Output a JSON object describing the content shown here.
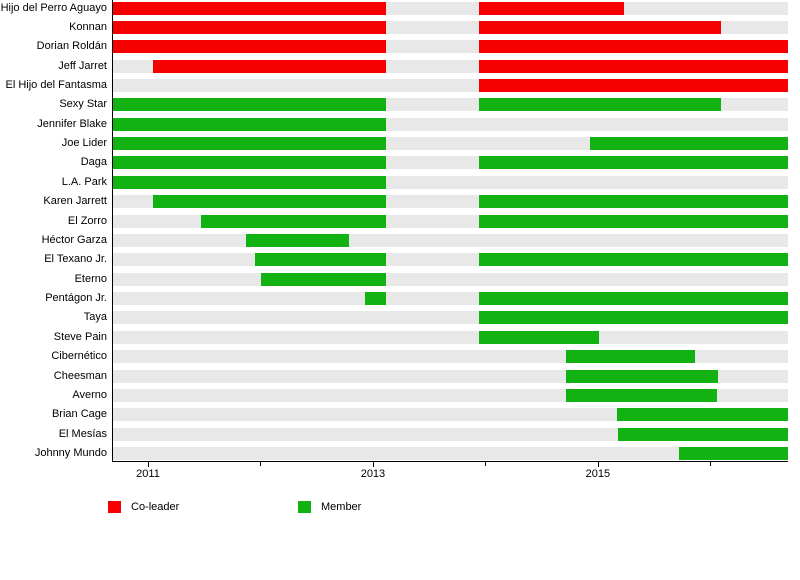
{
  "chart_data": {
    "type": "gantt",
    "title": "",
    "x_axis": {
      "min": 2010.68,
      "max": 2016.69,
      "labeled_ticks": [
        2011,
        2013,
        2015
      ],
      "minor_ticks": [
        2012,
        2014,
        2016
      ]
    },
    "colors": {
      "co-leader": "#f40000",
      "member": "#12b212",
      "track": "#e8e8e8"
    },
    "legend": [
      {
        "role": "co-leader",
        "label": "Co-leader",
        "color": "#f40000"
      },
      {
        "role": "member",
        "label": "Member",
        "color": "#12b212"
      }
    ],
    "rows": [
      {
        "name": "Hijo del Perro Aguayo",
        "role": "co-leader",
        "periods": [
          [
            2010.68,
            2013.11
          ],
          [
            2013.94,
            2015.23
          ]
        ]
      },
      {
        "name": "Konnan",
        "role": "co-leader",
        "periods": [
          [
            2010.68,
            2013.11
          ],
          [
            2013.94,
            2016.09
          ]
        ]
      },
      {
        "name": "Dorian Roldán",
        "role": "co-leader",
        "periods": [
          [
            2010.68,
            2013.11
          ],
          [
            2013.94,
            2016.69
          ]
        ]
      },
      {
        "name": "Jeff Jarret",
        "role": "co-leader",
        "periods": [
          [
            2011.04,
            2013.11
          ],
          [
            2013.94,
            2016.69
          ]
        ]
      },
      {
        "name": "El Hijo del Fantasma",
        "role": "co-leader",
        "periods": [
          [
            2013.94,
            2016.69
          ]
        ]
      },
      {
        "name": "Sexy Star",
        "role": "member",
        "periods": [
          [
            2010.68,
            2013.11
          ],
          [
            2013.94,
            2016.09
          ]
        ]
      },
      {
        "name": "Jennifer Blake",
        "role": "member",
        "periods": [
          [
            2010.68,
            2013.11
          ]
        ]
      },
      {
        "name": "Joe Lider",
        "role": "member",
        "periods": [
          [
            2010.68,
            2013.11
          ],
          [
            2014.93,
            2016.69
          ]
        ]
      },
      {
        "name": "Daga",
        "role": "member",
        "periods": [
          [
            2010.68,
            2013.11
          ],
          [
            2013.94,
            2016.69
          ]
        ]
      },
      {
        "name": "L.A. Park",
        "role": "member",
        "periods": [
          [
            2010.68,
            2013.11
          ]
        ]
      },
      {
        "name": "Karen Jarrett",
        "role": "member",
        "periods": [
          [
            2011.04,
            2013.11
          ],
          [
            2013.94,
            2016.69
          ]
        ]
      },
      {
        "name": "El Zorro",
        "role": "member",
        "periods": [
          [
            2011.46,
            2013.11
          ],
          [
            2013.94,
            2016.69
          ]
        ]
      },
      {
        "name": "Héctor Garza",
        "role": "member",
        "periods": [
          [
            2011.86,
            2012.78
          ]
        ]
      },
      {
        "name": "El Texano Jr.",
        "role": "member",
        "periods": [
          [
            2011.94,
            2013.11
          ],
          [
            2013.94,
            2016.69
          ]
        ]
      },
      {
        "name": "Eterno",
        "role": "member",
        "periods": [
          [
            2012.0,
            2013.11
          ]
        ]
      },
      {
        "name": "Pentágon Jr.",
        "role": "member",
        "periods": [
          [
            2012.92,
            2013.11
          ],
          [
            2013.94,
            2016.69
          ]
        ]
      },
      {
        "name": "Taya",
        "role": "member",
        "periods": [
          [
            2013.94,
            2016.69
          ]
        ]
      },
      {
        "name": "Steve Pain",
        "role": "member",
        "periods": [
          [
            2013.94,
            2015.01
          ]
        ]
      },
      {
        "name": "Cibernético",
        "role": "member",
        "periods": [
          [
            2014.71,
            2015.86
          ]
        ]
      },
      {
        "name": "Cheesman",
        "role": "member",
        "periods": [
          [
            2014.71,
            2016.07
          ]
        ]
      },
      {
        "name": "Averno",
        "role": "member",
        "periods": [
          [
            2014.71,
            2016.06
          ]
        ]
      },
      {
        "name": "Brian Cage",
        "role": "member",
        "periods": [
          [
            2015.17,
            2016.69
          ]
        ]
      },
      {
        "name": "El Mesías",
        "role": "member",
        "periods": [
          [
            2015.18,
            2016.69
          ]
        ]
      },
      {
        "name": "Johnny Mundo",
        "role": "member",
        "periods": [
          [
            2015.72,
            2016.69
          ]
        ]
      }
    ]
  }
}
